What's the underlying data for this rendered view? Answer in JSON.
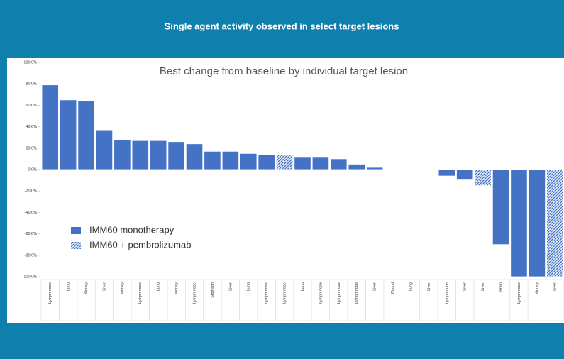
{
  "header": {
    "title": "Single agent activity observed in select target lesions"
  },
  "chart_data": {
    "type": "bar",
    "title": "Best change from baseline by individual target lesion",
    "categories": [
      "Lymph node",
      "Lung",
      "Kidney",
      "Liver",
      "Kidney",
      "Lymph node",
      "Lung",
      "Kidney",
      "Lymph node",
      "Stomach",
      "Liver",
      "Lung",
      "Lymph node",
      "Lymph node",
      "Lung",
      "Lymph node",
      "Lymph node",
      "Lymph node",
      "Liver",
      "Wound",
      "Lung",
      "Liver",
      "Lymph node",
      "Liver",
      "Liver",
      "Brain",
      "Lymph node",
      "Kidney",
      "Liver"
    ],
    "series": [
      {
        "name": "IMM60 monotherapy",
        "color": "#4472c4",
        "values": [
          79,
          65,
          64,
          37,
          28,
          27,
          27,
          26,
          24,
          17,
          17,
          15,
          14,
          null,
          12,
          12,
          10,
          5,
          2,
          0,
          0,
          0,
          -6,
          -9,
          null,
          -70,
          -100,
          -100,
          null
        ]
      },
      {
        "name": "IMM60 + pembrolizumab",
        "color": "#8faadc",
        "pattern": "hatch",
        "values": [
          null,
          null,
          null,
          null,
          null,
          null,
          null,
          null,
          null,
          null,
          null,
          null,
          null,
          14,
          null,
          null,
          null,
          null,
          null,
          null,
          null,
          null,
          null,
          null,
          -15,
          null,
          null,
          null,
          -100
        ]
      }
    ],
    "ylim": [
      -100,
      100
    ],
    "yticks": [
      {
        "value": -100,
        "label": "-100.0%"
      },
      {
        "value": -80,
        "label": "-80.0%"
      },
      {
        "value": -60,
        "label": "-60.0%"
      },
      {
        "value": -40,
        "label": "-40.0%"
      },
      {
        "value": -20,
        "label": "-20.0%"
      },
      {
        "value": 0,
        "label": "0.0%"
      },
      {
        "value": 20,
        "label": "20.0%"
      },
      {
        "value": 40,
        "label": "40.0%"
      },
      {
        "value": 60,
        "label": "60.0%"
      },
      {
        "value": 80,
        "label": "80.0%"
      },
      {
        "value": 100,
        "label": "100.0%"
      }
    ],
    "grid": false,
    "legend": "lower-left"
  }
}
